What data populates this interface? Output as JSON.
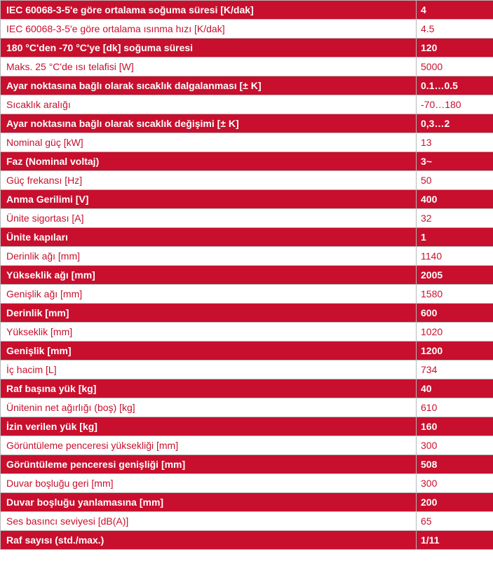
{
  "spec_table": {
    "rows": [
      {
        "label": "IEC 60068-3-5'e göre ortalama soğuma süresi [K/dak]",
        "value": "4"
      },
      {
        "label": "IEC 60068-3-5'e göre ortalama ısınma hızı [K/dak]",
        "value": "4.5"
      },
      {
        "label": "180 °C'den -70 °C'ye [dk] soğuma süresi",
        "value": "120"
      },
      {
        "label": "Maks. 25 °C'de ısı telafisi [W]",
        "value": "5000"
      },
      {
        "label": "Ayar noktasına bağlı olarak sıcaklık dalgalanması [± K]",
        "value": "0.1…0.5"
      },
      {
        "label": "Sıcaklık aralığı",
        "value": "-70…180"
      },
      {
        "label": "Ayar noktasına bağlı olarak sıcaklık değişimi [± K]",
        "value": "0,3…2"
      },
      {
        "label": "Nominal güç [kW]",
        "value": "13"
      },
      {
        "label": "Faz (Nominal voltaj)",
        "value": "3~"
      },
      {
        "label": "Güç frekansı [Hz]",
        "value": "50"
      },
      {
        "label": "Anma Gerilimi [V]",
        "value": "400"
      },
      {
        "label": "Ünite sigortası [A]",
        "value": "32"
      },
      {
        "label": "Ünite kapıları",
        "value": "1"
      },
      {
        "label": "Derinlik ağı [mm]",
        "value": "1140"
      },
      {
        "label": "Yükseklik ağı [mm]",
        "value": "2005"
      },
      {
        "label": "Genişlik ağı [mm]",
        "value": "1580"
      },
      {
        "label": "Derinlik [mm]",
        "value": "600"
      },
      {
        "label": "Yükseklik [mm]",
        "value": "1020"
      },
      {
        "label": "Genişlik [mm]",
        "value": "1200"
      },
      {
        "label": "İç hacim [L]",
        "value": "734"
      },
      {
        "label": "Raf başına yük [kg]",
        "value": "40"
      },
      {
        "label": "Ünitenin net ağırlığı (boş) [kg]",
        "value": "610"
      },
      {
        "label": "İzin verilen yük [kg]",
        "value": "160"
      },
      {
        "label": "Görüntüleme penceresi yüksekliği [mm]",
        "value": "300"
      },
      {
        "label": "Görüntüleme penceresi genişliği [mm]",
        "value": "508"
      },
      {
        "label": "Duvar boşluğu geri [mm]",
        "value": "300"
      },
      {
        "label": "Duvar boşluğu yanlamasına [mm]",
        "value": "200"
      },
      {
        "label": "Ses basıncı seviyesi [dB(A)]",
        "value": "65"
      },
      {
        "label": "Raf sayısı (std./max.)",
        "value": "1/11"
      }
    ]
  },
  "colors": {
    "accent_red": "#c8102e",
    "alt_row": "#ffffff",
    "border": "#b8b8b8"
  }
}
